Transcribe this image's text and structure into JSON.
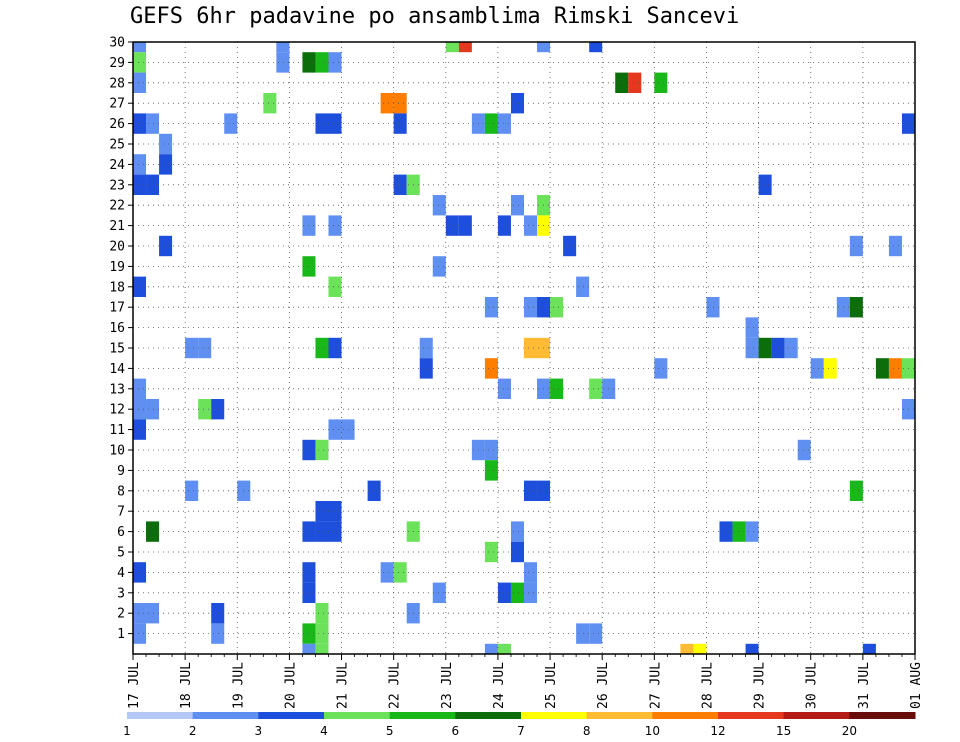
{
  "chart_data": {
    "type": "heatmap",
    "title": "GEFS 6hr padavine po ansamblima Rimski Sancevi",
    "xlabel": "",
    "ylabel": "",
    "x_ticks": [
      "17 JUL",
      "18 JUL",
      "19 JUL",
      "20 JUL",
      "21 JUL",
      "22 JUL",
      "23 JUL",
      "24 JUL",
      "25 JUL",
      "26 JUL",
      "27 JUL",
      "28 JUL",
      "29 JUL",
      "30 JUL",
      "31 JUL",
      "01 AUG"
    ],
    "y_ticks": [
      1,
      2,
      3,
      4,
      5,
      6,
      7,
      8,
      9,
      10,
      11,
      12,
      13,
      14,
      15,
      16,
      17,
      18,
      19,
      20,
      21,
      22,
      23,
      24,
      25,
      26,
      27,
      28,
      29,
      30
    ],
    "x_step_hours": 6,
    "grid": true,
    "colorbar": {
      "labels": [
        "1",
        "2",
        "3",
        "4",
        "5",
        "6",
        "7",
        "8",
        "10",
        "12",
        "15",
        "20"
      ],
      "colors": [
        "#b3c8f5",
        "#5f8ff0",
        "#1e4fdc",
        "#6be25a",
        "#18b818",
        "#0b6e0b",
        "#ffff00",
        "#ffbb33",
        "#ff7d00",
        "#e4381f",
        "#b41b14",
        "#680c0c"
      ]
    },
    "cells": [
      [
        0,
        30,
        1
      ],
      [
        0,
        29,
        3
      ],
      [
        0,
        28,
        1
      ],
      [
        0,
        26,
        2
      ],
      [
        0,
        24,
        1
      ],
      [
        0,
        23,
        2
      ],
      [
        0,
        18,
        2
      ],
      [
        0,
        13,
        1
      ],
      [
        0,
        12,
        1
      ],
      [
        0,
        11,
        2
      ],
      [
        0,
        4,
        2
      ],
      [
        0,
        2,
        1
      ],
      [
        0,
        1,
        1
      ],
      [
        1,
        26,
        1
      ],
      [
        1,
        23,
        2
      ],
      [
        1,
        12,
        1
      ],
      [
        1,
        6,
        5
      ],
      [
        1,
        2,
        1
      ],
      [
        2,
        25,
        1
      ],
      [
        2,
        24,
        2
      ],
      [
        2,
        20,
        2
      ],
      [
        4,
        15,
        1
      ],
      [
        4,
        8,
        1
      ],
      [
        5,
        15,
        1
      ],
      [
        5,
        12,
        3
      ],
      [
        6,
        12,
        2
      ],
      [
        6,
        2,
        2
      ],
      [
        6,
        1,
        1
      ],
      [
        7,
        26,
        1
      ],
      [
        8,
        8,
        1
      ],
      [
        10,
        27,
        3
      ],
      [
        11,
        30,
        1
      ],
      [
        11,
        29,
        1
      ],
      [
        13,
        29,
        5
      ],
      [
        13,
        21,
        1
      ],
      [
        13,
        19,
        4
      ],
      [
        13,
        10,
        2
      ],
      [
        13,
        6,
        2
      ],
      [
        13,
        4,
        2
      ],
      [
        13,
        3,
        2
      ],
      [
        13,
        1,
        4
      ],
      [
        13,
        0,
        1
      ],
      [
        14,
        29,
        4
      ],
      [
        14,
        26,
        2
      ],
      [
        14,
        15,
        4
      ],
      [
        14,
        10,
        3
      ],
      [
        14,
        7,
        2
      ],
      [
        14,
        6,
        2
      ],
      [
        14,
        2,
        3
      ],
      [
        14,
        1,
        3
      ],
      [
        14,
        0,
        3
      ],
      [
        15,
        29,
        1
      ],
      [
        15,
        26,
        2
      ],
      [
        15,
        21,
        1
      ],
      [
        15,
        18,
        3
      ],
      [
        15,
        15,
        2
      ],
      [
        15,
        11,
        1
      ],
      [
        15,
        7,
        2
      ],
      [
        15,
        6,
        2
      ],
      [
        16,
        11,
        1
      ],
      [
        18,
        8,
        2
      ],
      [
        19,
        27,
        8
      ],
      [
        19,
        4,
        1
      ],
      [
        20,
        27,
        8
      ],
      [
        20,
        26,
        2
      ],
      [
        20,
        23,
        2
      ],
      [
        20,
        4,
        3
      ],
      [
        21,
        23,
        3
      ],
      [
        21,
        6,
        3
      ],
      [
        21,
        2,
        1
      ],
      [
        22,
        15,
        1
      ],
      [
        22,
        14,
        2
      ],
      [
        23,
        22,
        1
      ],
      [
        23,
        19,
        1
      ],
      [
        23,
        3,
        1
      ],
      [
        24,
        30,
        3
      ],
      [
        24,
        21,
        2
      ],
      [
        25,
        30,
        9
      ],
      [
        25,
        21,
        2
      ],
      [
        26,
        26,
        1
      ],
      [
        26,
        10,
        1
      ],
      [
        27,
        26,
        4
      ],
      [
        27,
        17,
        1
      ],
      [
        27,
        14,
        8
      ],
      [
        27,
        10,
        1
      ],
      [
        27,
        9,
        4
      ],
      [
        27,
        5,
        3
      ],
      [
        27,
        0,
        1
      ],
      [
        28,
        26,
        1
      ],
      [
        28,
        21,
        2
      ],
      [
        28,
        13,
        1
      ],
      [
        28,
        3,
        2
      ],
      [
        28,
        0,
        3
      ],
      [
        29,
        27,
        2
      ],
      [
        29,
        22,
        1
      ],
      [
        29,
        6,
        1
      ],
      [
        29,
        5,
        2
      ],
      [
        29,
        3,
        4
      ],
      [
        30,
        21,
        1
      ],
      [
        30,
        17,
        1
      ],
      [
        30,
        15,
        7
      ],
      [
        30,
        8,
        2
      ],
      [
        30,
        4,
        1
      ],
      [
        30,
        3,
        1
      ],
      [
        31,
        30,
        1
      ],
      [
        31,
        22,
        3
      ],
      [
        31,
        21,
        6
      ],
      [
        31,
        17,
        2
      ],
      [
        31,
        15,
        7
      ],
      [
        31,
        13,
        1
      ],
      [
        31,
        8,
        2
      ],
      [
        32,
        17,
        3
      ],
      [
        32,
        13,
        4
      ],
      [
        33,
        20,
        2
      ],
      [
        34,
        18,
        1
      ],
      [
        34,
        1,
        1
      ],
      [
        35,
        30,
        2
      ],
      [
        35,
        13,
        3
      ],
      [
        35,
        1,
        1
      ],
      [
        36,
        13,
        1
      ],
      [
        37,
        28,
        5
      ],
      [
        38,
        28,
        9
      ],
      [
        40,
        28,
        4
      ],
      [
        40,
        14,
        1
      ],
      [
        42,
        0,
        7
      ],
      [
        43,
        0,
        6
      ],
      [
        44,
        17,
        1
      ],
      [
        45,
        6,
        2
      ],
      [
        46,
        6,
        4
      ],
      [
        47,
        16,
        1
      ],
      [
        47,
        15,
        1
      ],
      [
        47,
        6,
        1
      ],
      [
        47,
        0,
        2
      ],
      [
        48,
        23,
        2
      ],
      [
        48,
        15,
        5
      ],
      [
        49,
        15,
        2
      ],
      [
        50,
        15,
        1
      ],
      [
        51,
        10,
        1
      ],
      [
        52,
        14,
        1
      ],
      [
        53,
        14,
        6
      ],
      [
        54,
        17,
        1
      ],
      [
        55,
        20,
        1
      ],
      [
        55,
        17,
        5
      ],
      [
        55,
        8,
        4
      ],
      [
        56,
        0,
        2
      ],
      [
        57,
        14,
        5
      ],
      [
        58,
        20,
        1
      ],
      [
        58,
        14,
        8
      ],
      [
        59,
        26,
        2
      ],
      [
        59,
        14,
        3
      ],
      [
        59,
        12,
        1
      ]
    ]
  }
}
